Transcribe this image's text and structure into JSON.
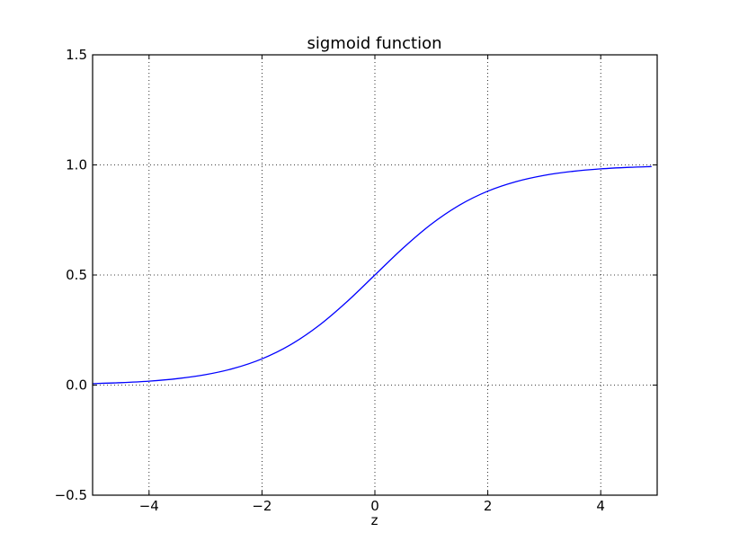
{
  "chart_data": {
    "type": "line",
    "title": "sigmoid function",
    "xlabel": "z",
    "ylabel": "",
    "xlim": [
      -5,
      5
    ],
    "ylim": [
      -0.5,
      1.5
    ],
    "x_ticks": [
      -4,
      -2,
      0,
      2,
      4
    ],
    "x_tick_labels": [
      "−4",
      "−2",
      "0",
      "2",
      "4"
    ],
    "y_ticks": [
      -0.5,
      0.0,
      0.5,
      1.0,
      1.5
    ],
    "y_tick_labels": [
      "−0.5",
      "0.0",
      "0.5",
      "1.0",
      "1.5"
    ],
    "grid": true,
    "grid_style": "dotted",
    "legend": false,
    "colors": {
      "line": "#0000ff",
      "grid": "#000000",
      "axes": "#000000",
      "background": "#ffffff"
    },
    "series": [
      {
        "x": [
          -5.0,
          -4.5,
          -4.0,
          -3.5,
          -3.0,
          -2.5,
          -2.0,
          -1.5,
          -1.0,
          -0.5,
          0.0,
          0.5,
          1.0,
          1.5,
          2.0,
          2.5,
          3.0,
          3.5,
          4.0,
          4.5,
          4.9
        ],
        "y": [
          0.0067,
          0.011,
          0.018,
          0.0293,
          0.0474,
          0.0759,
          0.1192,
          0.1824,
          0.2689,
          0.3775,
          0.5,
          0.6225,
          0.7311,
          0.8176,
          0.8808,
          0.9241,
          0.9526,
          0.9707,
          0.982,
          0.989,
          0.9926
        ]
      }
    ]
  }
}
